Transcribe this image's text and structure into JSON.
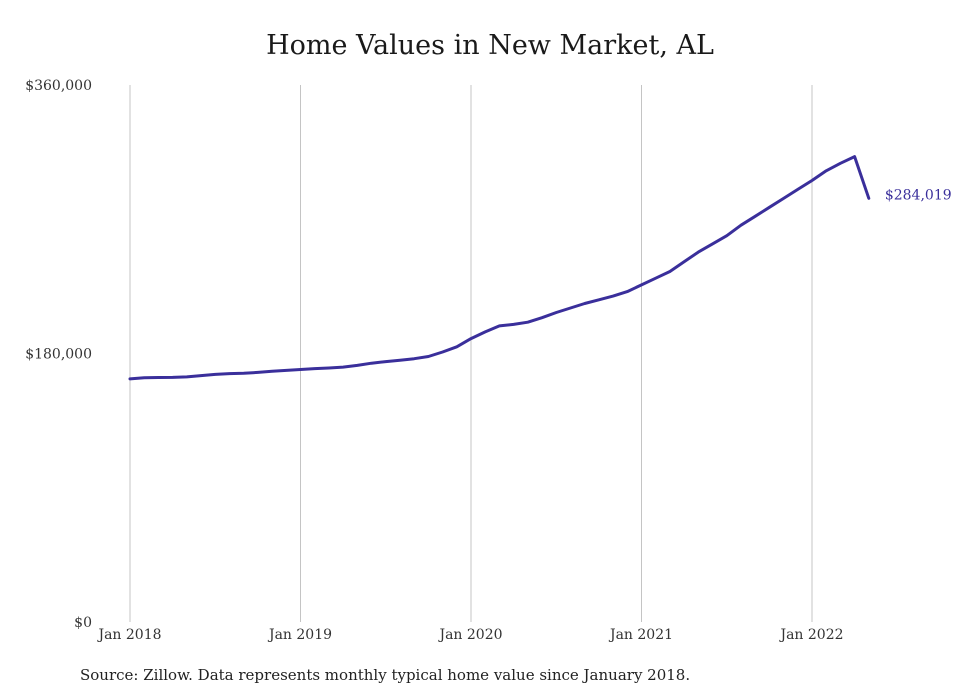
{
  "chart_data": {
    "type": "line",
    "title": "Home Values in New Market, AL",
    "xlabel": "",
    "ylabel": "",
    "x_tick_labels": [
      "Jan 2018",
      "Jan 2019",
      "Jan 2020",
      "Jan 2021",
      "Jan 2022"
    ],
    "y_tick_labels": [
      "$0",
      "$180,000",
      "$360,000"
    ],
    "y_ticks": [
      0,
      180000,
      360000
    ],
    "ylim": [
      0,
      360000
    ],
    "xlim": [
      "2018-01",
      "2022-05"
    ],
    "grid": "vertical",
    "legend": "none",
    "series_color": "#3a2f9b",
    "end_label": "$284,019",
    "series": [
      {
        "x": [
          "2018-01",
          "2018-02",
          "2018-03",
          "2018-04",
          "2018-05",
          "2018-06",
          "2018-07",
          "2018-08",
          "2018-09",
          "2018-10",
          "2018-11",
          "2018-12",
          "2019-01",
          "2019-02",
          "2019-03",
          "2019-04",
          "2019-05",
          "2019-06",
          "2019-07",
          "2019-08",
          "2019-09",
          "2019-10",
          "2019-11",
          "2019-12",
          "2020-01",
          "2020-02",
          "2020-03",
          "2020-04",
          "2020-05",
          "2020-06",
          "2020-07",
          "2020-08",
          "2020-09",
          "2020-10",
          "2020-11",
          "2020-12",
          "2021-01",
          "2021-02",
          "2021-03",
          "2021-04",
          "2021-05",
          "2021-06",
          "2021-07",
          "2021-08",
          "2021-09",
          "2021-10",
          "2021-11",
          "2021-12",
          "2022-01",
          "2022-02",
          "2022-03",
          "2022-04",
          "2022-05"
        ],
        "values": [
          163000,
          163800,
          163900,
          164000,
          164300,
          165200,
          166000,
          166500,
          166700,
          167300,
          168100,
          168700,
          169300,
          169900,
          170300,
          170900,
          172000,
          173500,
          174600,
          175500,
          176500,
          178000,
          181000,
          184500,
          190000,
          194500,
          198500,
          199500,
          201000,
          204000,
          207500,
          210500,
          213500,
          216000,
          218500,
          221500,
          226000,
          230500,
          235000,
          241500,
          248000,
          253500,
          259000,
          266000,
          272000,
          278000,
          284000,
          290000,
          296000,
          302500,
          307500,
          312000,
          284019
        ]
      }
    ]
  },
  "source": "Source: Zillow. Data represents monthly typical home value since January 2018."
}
